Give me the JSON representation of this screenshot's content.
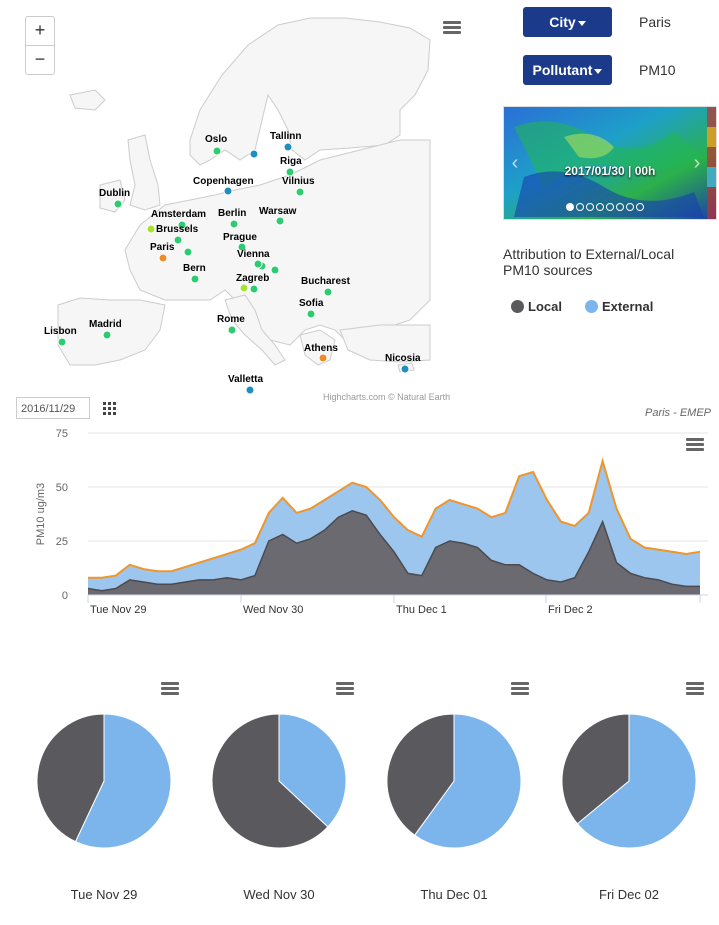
{
  "map": {
    "zoom_in": "+",
    "zoom_out": "−",
    "credits": "Highcharts.com © Natural Earth",
    "cities": [
      {
        "name": "Oslo",
        "color": "#2ecc71"
      },
      {
        "name": "Tallinn",
        "color": "#1f8fbf"
      },
      {
        "name": "Riga",
        "color": "#2ecc71"
      },
      {
        "name": "Copenhagen",
        "color": "#1f8fbf"
      },
      {
        "name": "Vilnius",
        "color": "#2ecc71"
      },
      {
        "name": "Dublin",
        "color": "#2ecc71"
      },
      {
        "name": "Amsterdam",
        "color": "#2ecc71"
      },
      {
        "name": "Berlin",
        "color": "#2ecc71"
      },
      {
        "name": "Warsaw",
        "color": "#2ecc71"
      },
      {
        "name": "Brussels",
        "color": "#a6e22e"
      },
      {
        "name": "Paris",
        "color": "#f08c28"
      },
      {
        "name": "Prague",
        "color": "#2ecc71"
      },
      {
        "name": "Vienna",
        "color": "#2ecc71"
      },
      {
        "name": "Bern",
        "color": "#2ecc71"
      },
      {
        "name": "Zagreb",
        "color": "#2ecc71"
      },
      {
        "name": "Bucharest",
        "color": "#2ecc71"
      },
      {
        "name": "Sofia",
        "color": "#2ecc71"
      },
      {
        "name": "Lisbon",
        "color": "#2ecc71"
      },
      {
        "name": "Madrid",
        "color": "#2ecc71"
      },
      {
        "name": "Rome",
        "color": "#2ecc71"
      },
      {
        "name": "Athens",
        "color": "#f08c28"
      },
      {
        "name": "Nicosia",
        "color": "#1f8fbf"
      },
      {
        "name": "Valletta",
        "color": "#1f8fbf"
      }
    ]
  },
  "controls": {
    "city_button": "City",
    "city_value": "Paris",
    "pollutant_button": "Pollutant",
    "pollutant_value": "PM10"
  },
  "forecast_image": {
    "timestamp": "2017/01/30 | 00h"
  },
  "attribution": {
    "title": "Attribution to External/Local PM10 sources",
    "local_label": "Local",
    "external_label": "External",
    "local_color": "#5a5a5e",
    "external_color": "#7cb5ec"
  },
  "date_input": {
    "value": "2016/11/29"
  },
  "chart_data": [
    {
      "type": "area",
      "subtitle": "Paris - EMEP",
      "ylabel": "PM10 ug/m3",
      "ylim": [
        0,
        75
      ],
      "yticks": [
        "75",
        "50",
        "25",
        "0"
      ],
      "xticks": [
        "Tue Nov 29",
        "Wed Nov 30",
        "Thu Dec 1",
        "Fri Dec 2"
      ],
      "series": [
        {
          "name": "External",
          "values": [
            8,
            8,
            9,
            14,
            12,
            11,
            11,
            13,
            15,
            17,
            19,
            21,
            24,
            38,
            45,
            38,
            40,
            44,
            48,
            52,
            50,
            44,
            36,
            30,
            27,
            40,
            44,
            42,
            40,
            36,
            38,
            55,
            57,
            44,
            34,
            32,
            38,
            62,
            40,
            26,
            22,
            21,
            20,
            19,
            20
          ]
        },
        {
          "name": "Local",
          "values": [
            3,
            2,
            3,
            7,
            6,
            5,
            5,
            6,
            7,
            7,
            8,
            7,
            9,
            25,
            28,
            24,
            26,
            30,
            36,
            39,
            37,
            28,
            20,
            10,
            9,
            22,
            25,
            24,
            22,
            16,
            14,
            14,
            10,
            7,
            6,
            8,
            20,
            34,
            15,
            10,
            8,
            7,
            5,
            4,
            4
          ]
        }
      ]
    },
    {
      "type": "pie",
      "label": "Tue Nov 29",
      "series": [
        {
          "name": "External",
          "value": 57
        },
        {
          "name": "Local",
          "value": 43
        }
      ]
    },
    {
      "type": "pie",
      "label": "Wed Nov 30",
      "series": [
        {
          "name": "External",
          "value": 37
        },
        {
          "name": "Local",
          "value": 63
        }
      ]
    },
    {
      "type": "pie",
      "label": "Thu Dec 01",
      "series": [
        {
          "name": "External",
          "value": 60
        },
        {
          "name": "Local",
          "value": 40
        }
      ]
    },
    {
      "type": "pie",
      "label": "Fri Dec 02",
      "series": [
        {
          "name": "External",
          "value": 64
        },
        {
          "name": "Local",
          "value": 36
        }
      ]
    }
  ]
}
